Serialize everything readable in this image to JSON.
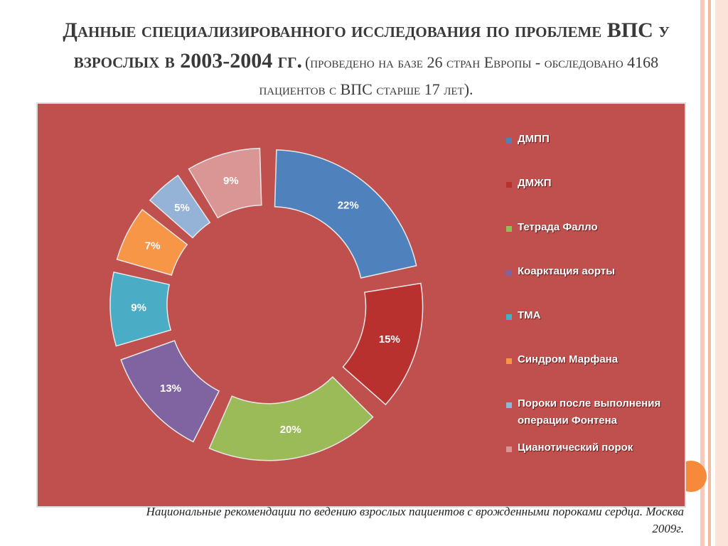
{
  "chart_data": {
    "type": "donut",
    "title": "Данные специализированного исследования по проблеме ВПС у взрослых в 2003-2004 гг.",
    "subtitle": "(проведено на базе 26 стран Европы - обследовано 4168 пациентов с ВПС старше 17 лет).",
    "categories": [
      "ДМПП",
      "ДМЖП",
      "Тетрада Фалло",
      "Коарктация аорты",
      "ТМА",
      "Синдром Марфана",
      "Пороки после выполнения операции Фонтена",
      "Цианотический порок"
    ],
    "values": [
      22,
      15,
      20,
      13,
      9,
      7,
      5,
      9
    ],
    "value_labels": [
      "22%",
      "15%",
      "20%",
      "13%",
      "9%",
      "7%",
      "5%",
      "9%"
    ],
    "colors": [
      "#4f81bd",
      "#b8312f",
      "#9bbb59",
      "#8064a2",
      "#4bacc6",
      "#f79646",
      "#95b3d7",
      "#d99694"
    ],
    "source": "Национальные рекомендации по ведению взрослых пациентов с врожденными пороками сердца. Москва 2009г."
  }
}
